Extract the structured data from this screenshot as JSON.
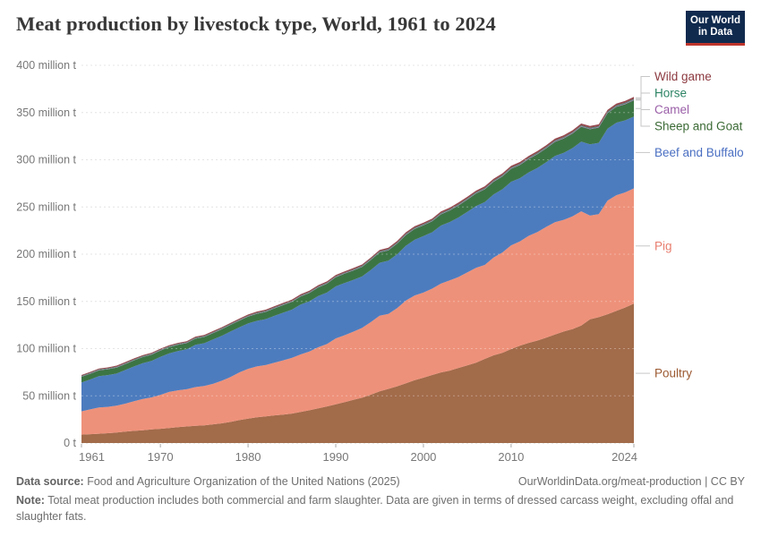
{
  "header": {
    "logo_line1": "Our World",
    "logo_line2": "in Data",
    "logo_bg": "#102a4e",
    "logo_red": "#be352c"
  },
  "chart_data": {
    "type": "area",
    "stacked": true,
    "title": "Meat production by livestock type, World, 1961 to 2024",
    "xlabel": "",
    "ylabel": "",
    "unit": "million t",
    "ylim": [
      0,
      400
    ],
    "grid": true,
    "legend_position": "right",
    "x_ticks": [
      1961,
      1970,
      1980,
      1990,
      2000,
      2010,
      2024
    ],
    "y_ticks": [
      {
        "value": 0,
        "label": "0 t"
      },
      {
        "value": 50,
        "label": "50 million t"
      },
      {
        "value": 100,
        "label": "100 million t"
      },
      {
        "value": 150,
        "label": "150 million t"
      },
      {
        "value": 200,
        "label": "200 million t"
      },
      {
        "value": 250,
        "label": "250 million t"
      },
      {
        "value": 300,
        "label": "300 million t"
      },
      {
        "value": 350,
        "label": "350 million t"
      },
      {
        "value": 400,
        "label": "400 million t"
      }
    ],
    "x": [
      1961,
      1962,
      1963,
      1964,
      1965,
      1966,
      1967,
      1968,
      1969,
      1970,
      1971,
      1972,
      1973,
      1974,
      1975,
      1976,
      1977,
      1978,
      1979,
      1980,
      1981,
      1982,
      1983,
      1984,
      1985,
      1986,
      1987,
      1988,
      1989,
      1990,
      1991,
      1992,
      1993,
      1994,
      1995,
      1996,
      1997,
      1998,
      1999,
      2000,
      2001,
      2002,
      2003,
      2004,
      2005,
      2006,
      2007,
      2008,
      2009,
      2010,
      2011,
      2012,
      2013,
      2014,
      2015,
      2016,
      2017,
      2018,
      2019,
      2020,
      2021,
      2022,
      2023,
      2024
    ],
    "series": [
      {
        "name": "Poultry",
        "color": "#A26B4A",
        "label_color": "#9C5A32",
        "values": [
          8.9,
          9.4,
          9.9,
          10.4,
          11.1,
          12.0,
          12.9,
          13.5,
          14.4,
          15.1,
          15.9,
          16.9,
          17.5,
          18.2,
          18.7,
          19.8,
          20.9,
          22.4,
          24.3,
          25.9,
          27.2,
          28.2,
          29.3,
          30.1,
          31.2,
          32.9,
          34.7,
          36.8,
          38.8,
          41.0,
          43.2,
          45.7,
          48.0,
          51.2,
          54.8,
          57.3,
          60.1,
          63.2,
          66.6,
          69.2,
          72.0,
          74.8,
          76.7,
          79.5,
          82.3,
          85.0,
          89.1,
          92.9,
          95.5,
          99.5,
          103.0,
          106.1,
          108.5,
          111.7,
          114.9,
          118.1,
          120.7,
          124.5,
          131.1,
          133.3,
          136.4,
          139.9,
          143.5,
          147.7
        ]
      },
      {
        "name": "Pig",
        "color": "#EE917A",
        "label_color": "#E87D6E",
        "values": [
          24.7,
          26.2,
          27.8,
          27.9,
          28.5,
          29.7,
          31.5,
          33.1,
          33.9,
          35.8,
          38.2,
          38.9,
          39.5,
          41.0,
          41.7,
          42.9,
          45.1,
          47.5,
          50.5,
          52.7,
          53.9,
          54.4,
          55.7,
          57.5,
          58.9,
          60.9,
          62.2,
          64.6,
          66.0,
          69.8,
          70.9,
          72.2,
          73.9,
          76.9,
          80.1,
          79.4,
          82.8,
          87.8,
          89.7,
          90.1,
          91.5,
          94.0,
          95.5,
          96.3,
          98.4,
          100.6,
          99.5,
          103.5,
          106.3,
          109.9,
          110.6,
          113.3,
          114.9,
          117.2,
          118.9,
          118.3,
          119.3,
          120.9,
          109.8,
          109.1,
          120.4,
          122.6,
          121.9,
          122.0
        ]
      },
      {
        "name": "Beef and Buffalo",
        "color": "#4D7CBE",
        "label_color": "#4A6FC2",
        "values": [
          30.5,
          31.7,
          33.2,
          33.6,
          34.0,
          35.6,
          36.7,
          38.0,
          38.7,
          40.4,
          40.8,
          41.6,
          42.3,
          44.8,
          45.3,
          47.0,
          47.6,
          48.2,
          47.7,
          48.0,
          48.3,
          48.6,
          49.7,
          50.4,
          51.1,
          52.9,
          53.2,
          54.2,
          54.5,
          55.1,
          55.4,
          54.9,
          54.5,
          55.2,
          56.0,
          56.4,
          57.0,
          58.0,
          59.0,
          59.8,
          59.7,
          61.5,
          61.8,
          63.1,
          64.0,
          65.3,
          66.6,
          66.8,
          66.9,
          67.3,
          66.9,
          67.2,
          68.0,
          68.5,
          70.3,
          71.0,
          72.3,
          73.8,
          75.4,
          75.5,
          76.1,
          76.7,
          76.3,
          76.0
        ]
      },
      {
        "name": "Sheep and Goat",
        "color": "#3C7544",
        "label_color": "#3B6A35",
        "values": [
          6.0,
          6.1,
          6.1,
          6.2,
          6.3,
          6.4,
          6.5,
          6.5,
          6.6,
          6.6,
          6.6,
          6.6,
          6.5,
          6.5,
          6.6,
          6.7,
          6.9,
          7.0,
          7.1,
          7.3,
          7.5,
          7.7,
          7.9,
          8.1,
          8.3,
          8.5,
          8.8,
          9.1,
          9.4,
          9.6,
          9.8,
          9.9,
          10.1,
          10.5,
          10.9,
          11.0,
          11.2,
          11.3,
          11.4,
          11.4,
          11.6,
          11.9,
          12.2,
          12.7,
          13.0,
          13.3,
          13.5,
          13.5,
          13.6,
          13.7,
          13.9,
          14.2,
          14.5,
          14.7,
          14.9,
          15.2,
          15.5,
          15.8,
          16.0,
          16.2,
          16.5,
          16.8,
          17.1,
          17.3
        ]
      },
      {
        "name": "Camel",
        "color": "#A66AAD",
        "label_color": "#9A5FA8",
        "values": [
          0.4,
          0.4,
          0.4,
          0.4,
          0.4,
          0.4,
          0.4,
          0.4,
          0.4,
          0.4,
          0.4,
          0.4,
          0.41,
          0.41,
          0.42,
          0.42,
          0.43,
          0.43,
          0.44,
          0.44,
          0.45,
          0.45,
          0.46,
          0.46,
          0.47,
          0.47,
          0.48,
          0.48,
          0.49,
          0.5,
          0.5,
          0.5,
          0.51,
          0.51,
          0.52,
          0.52,
          0.53,
          0.53,
          0.54,
          0.55,
          0.55,
          0.56,
          0.56,
          0.57,
          0.57,
          0.58,
          0.58,
          0.59,
          0.59,
          0.6,
          0.6,
          0.61,
          0.61,
          0.62,
          0.62,
          0.63,
          0.63,
          0.64,
          0.64,
          0.65,
          0.66,
          0.67,
          0.68,
          0.7
        ]
      },
      {
        "name": "Horse",
        "color": "#2D8465",
        "label_color": "#2D8465",
        "values": [
          0.55,
          0.55,
          0.55,
          0.55,
          0.55,
          0.55,
          0.55,
          0.55,
          0.55,
          0.55,
          0.55,
          0.55,
          0.55,
          0.55,
          0.55,
          0.55,
          0.55,
          0.55,
          0.55,
          0.55,
          0.55,
          0.56,
          0.56,
          0.57,
          0.57,
          0.58,
          0.58,
          0.59,
          0.59,
          0.6,
          0.61,
          0.62,
          0.63,
          0.64,
          0.65,
          0.66,
          0.67,
          0.68,
          0.69,
          0.7,
          0.71,
          0.71,
          0.72,
          0.72,
          0.73,
          0.73,
          0.74,
          0.74,
          0.75,
          0.75,
          0.76,
          0.76,
          0.77,
          0.77,
          0.78,
          0.78,
          0.79,
          0.79,
          0.8,
          0.8,
          0.8,
          0.8,
          0.8,
          0.8
        ]
      },
      {
        "name": "Wild game",
        "color": "#95484F",
        "label_color": "#8C3A40",
        "values": [
          1.0,
          1.0,
          1.0,
          1.0,
          1.1,
          1.1,
          1.1,
          1.1,
          1.1,
          1.1,
          1.1,
          1.1,
          1.1,
          1.2,
          1.2,
          1.2,
          1.2,
          1.2,
          1.2,
          1.2,
          1.3,
          1.3,
          1.3,
          1.3,
          1.3,
          1.3,
          1.4,
          1.4,
          1.4,
          1.4,
          1.4,
          1.5,
          1.5,
          1.5,
          1.6,
          1.6,
          1.6,
          1.7,
          1.7,
          1.7,
          1.7,
          1.8,
          1.8,
          1.8,
          1.8,
          1.8,
          1.9,
          1.9,
          1.9,
          1.9,
          1.9,
          1.9,
          1.9,
          2.0,
          2.0,
          2.0,
          2.0,
          2.0,
          2.0,
          2.0,
          2.0,
          2.0,
          2.0,
          2.0
        ]
      }
    ]
  },
  "footer": {
    "data_source_label": "Data source:",
    "data_source": " Food and Agriculture Organization of the United Nations (2025)",
    "link": "OurWorldinData.org/meat-production | CC BY",
    "note_label": "Note:",
    "note": " Total meat production includes both commercial and farm slaughter. Data are given in terms of dressed carcass weight, excluding offal and slaughter fats."
  }
}
